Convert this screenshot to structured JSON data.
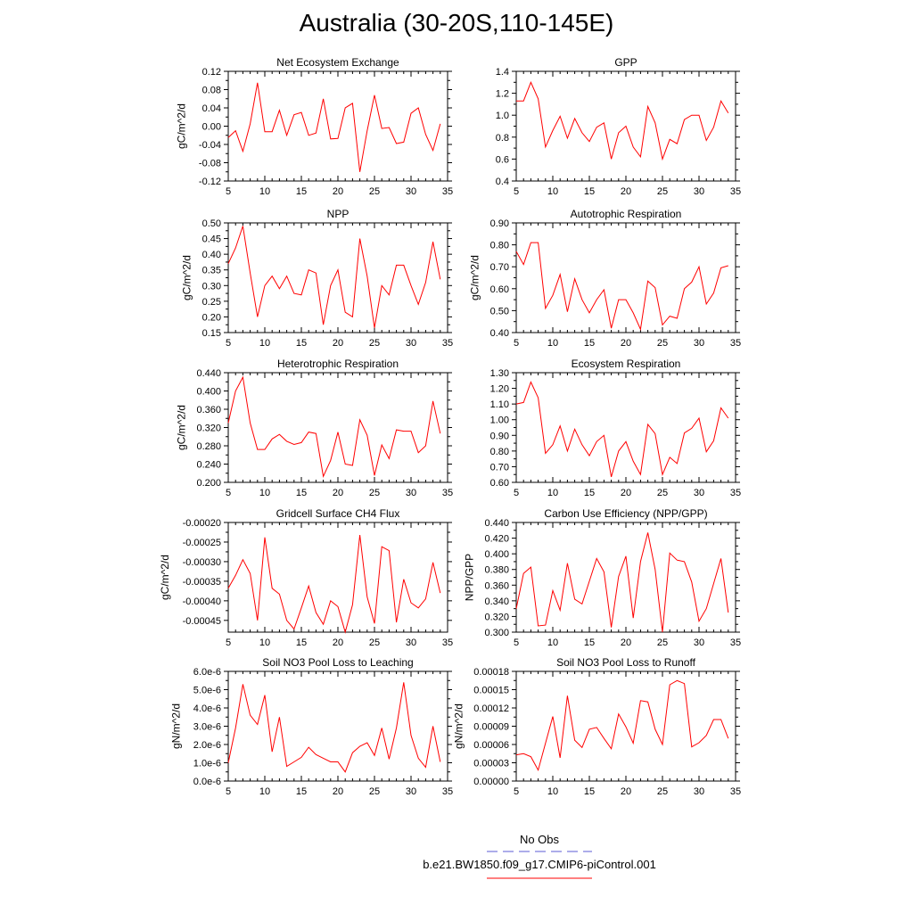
{
  "title": "Australia (30-20S,110-145E)",
  "colors": {
    "model": "#ff0000",
    "obs": "#5b5bd6"
  },
  "legend": {
    "entries": [
      {
        "name": "No Obs",
        "style": "dashed",
        "color": "#5b5bd6"
      },
      {
        "name": "b.e21.BW1850.f09_g17.CMIP6-piControl.001",
        "style": "solid",
        "color": "#ff0000"
      }
    ]
  },
  "chart_data": [
    {
      "type": "line",
      "title": "Net Ecosystem Exchange",
      "ylabel": "gC/m^2/d",
      "xlim": [
        5,
        35
      ],
      "xticks": [
        5,
        10,
        15,
        20,
        25,
        30,
        35
      ],
      "ylim": [
        -0.12,
        0.12
      ],
      "yticks": [
        "-0.12",
        "-0.08",
        "-0.04",
        "0.00",
        "0.04",
        "0.08",
        "0.12"
      ],
      "x": [
        5,
        6,
        7,
        8,
        9,
        10,
        11,
        12,
        13,
        14,
        15,
        16,
        17,
        18,
        19,
        20,
        21,
        22,
        23,
        24,
        25,
        26,
        27,
        28,
        29,
        30,
        31,
        32,
        33,
        34
      ],
      "series": [
        {
          "values": [
            -0.025,
            -0.01,
            -0.055,
            0.005,
            0.095,
            -0.012,
            -0.012,
            0.035,
            -0.02,
            0.025,
            0.03,
            -0.02,
            -0.015,
            0.06,
            -0.028,
            -0.027,
            0.04,
            0.05,
            -0.1,
            -0.01,
            0.068,
            -0.005,
            -0.003,
            -0.038,
            -0.035,
            0.028,
            0.04,
            -0.018,
            -0.053,
            0.005
          ]
        }
      ]
    },
    {
      "type": "line",
      "title": "GPP",
      "ylabel": "",
      "xlim": [
        5,
        35
      ],
      "xticks": [
        5,
        10,
        15,
        20,
        25,
        30,
        35
      ],
      "ylim": [
        0.4,
        1.4
      ],
      "yticks": [
        "0.4",
        "0.6",
        "0.8",
        "1.0",
        "1.2",
        "1.4"
      ],
      "x": [
        5,
        6,
        7,
        8,
        9,
        10,
        11,
        12,
        13,
        14,
        15,
        16,
        17,
        18,
        19,
        20,
        21,
        22,
        23,
        24,
        25,
        26,
        27,
        28,
        29,
        30,
        31,
        32,
        33,
        34
      ],
      "series": [
        {
          "values": [
            1.13,
            1.13,
            1.3,
            1.15,
            0.71,
            0.86,
            0.99,
            0.79,
            0.97,
            0.84,
            0.76,
            0.89,
            0.93,
            0.6,
            0.84,
            0.9,
            0.71,
            0.62,
            1.08,
            0.93,
            0.6,
            0.78,
            0.74,
            0.96,
            1.0,
            1.0,
            0.77,
            0.89,
            1.13,
            1.02
          ]
        }
      ]
    },
    {
      "type": "line",
      "title": "NPP",
      "ylabel": "gC/m^2/d",
      "xlim": [
        5,
        35
      ],
      "xticks": [
        5,
        10,
        15,
        20,
        25,
        30,
        35
      ],
      "ylim": [
        0.15,
        0.5
      ],
      "yticks": [
        "0.15",
        "0.20",
        "0.25",
        "0.30",
        "0.35",
        "0.40",
        "0.45",
        "0.50"
      ],
      "x": [
        5,
        6,
        7,
        8,
        9,
        10,
        11,
        12,
        13,
        14,
        15,
        16,
        17,
        18,
        19,
        20,
        21,
        22,
        23,
        24,
        25,
        26,
        27,
        28,
        29,
        30,
        31,
        32,
        33,
        34
      ],
      "series": [
        {
          "values": [
            0.37,
            0.42,
            0.49,
            0.34,
            0.2,
            0.3,
            0.33,
            0.29,
            0.33,
            0.275,
            0.27,
            0.35,
            0.34,
            0.175,
            0.3,
            0.35,
            0.215,
            0.2,
            0.45,
            0.33,
            0.165,
            0.3,
            0.27,
            0.365,
            0.365,
            0.3,
            0.24,
            0.31,
            0.44,
            0.32
          ]
        }
      ]
    },
    {
      "type": "line",
      "title": "Autotrophic Respiration",
      "ylabel": "gC/m^2/d",
      "xlim": [
        5,
        35
      ],
      "xticks": [
        5,
        10,
        15,
        20,
        25,
        30,
        35
      ],
      "ylim": [
        0.4,
        0.9
      ],
      "yticks": [
        "0.40",
        "0.50",
        "0.60",
        "0.70",
        "0.80",
        "0.90"
      ],
      "x": [
        5,
        6,
        7,
        8,
        9,
        10,
        11,
        12,
        13,
        14,
        15,
        16,
        17,
        18,
        19,
        20,
        21,
        22,
        23,
        24,
        25,
        26,
        27,
        28,
        29,
        30,
        31,
        32,
        33,
        34
      ],
      "series": [
        {
          "values": [
            0.77,
            0.71,
            0.81,
            0.81,
            0.51,
            0.57,
            0.665,
            0.495,
            0.645,
            0.55,
            0.49,
            0.55,
            0.595,
            0.42,
            0.55,
            0.55,
            0.49,
            0.415,
            0.635,
            0.605,
            0.435,
            0.475,
            0.465,
            0.6,
            0.63,
            0.7,
            0.53,
            0.58,
            0.695,
            0.705
          ]
        }
      ]
    },
    {
      "type": "line",
      "title": "Heterotrophic Respiration",
      "ylabel": "gC/m^2/d",
      "xlim": [
        5,
        35
      ],
      "xticks": [
        5,
        10,
        15,
        20,
        25,
        30,
        35
      ],
      "ylim": [
        0.2,
        0.44
      ],
      "yticks": [
        "0.200",
        "0.240",
        "0.280",
        "0.320",
        "0.360",
        "0.400",
        "0.440"
      ],
      "x": [
        5,
        6,
        7,
        8,
        9,
        10,
        11,
        12,
        13,
        14,
        15,
        16,
        17,
        18,
        19,
        20,
        21,
        22,
        23,
        24,
        25,
        26,
        27,
        28,
        29,
        30,
        31,
        32,
        33,
        34
      ],
      "series": [
        {
          "values": [
            0.33,
            0.4,
            0.43,
            0.33,
            0.272,
            0.272,
            0.295,
            0.305,
            0.29,
            0.283,
            0.287,
            0.31,
            0.307,
            0.213,
            0.248,
            0.31,
            0.24,
            0.237,
            0.337,
            0.303,
            0.215,
            0.282,
            0.252,
            0.315,
            0.312,
            0.312,
            0.265,
            0.28,
            0.378,
            0.307
          ]
        }
      ]
    },
    {
      "type": "line",
      "title": "Ecosystem Respiration",
      "ylabel": "",
      "xlim": [
        5,
        35
      ],
      "xticks": [
        5,
        10,
        15,
        20,
        25,
        30,
        35
      ],
      "ylim": [
        0.6,
        1.3
      ],
      "yticks": [
        "0.60",
        "0.70",
        "0.80",
        "0.90",
        "1.00",
        "1.10",
        "1.20",
        "1.30"
      ],
      "x": [
        5,
        6,
        7,
        8,
        9,
        10,
        11,
        12,
        13,
        14,
        15,
        16,
        17,
        18,
        19,
        20,
        21,
        22,
        23,
        24,
        25,
        26,
        27,
        28,
        29,
        30,
        31,
        32,
        33,
        34
      ],
      "series": [
        {
          "values": [
            1.1,
            1.11,
            1.24,
            1.14,
            0.785,
            0.84,
            0.96,
            0.8,
            0.94,
            0.84,
            0.77,
            0.86,
            0.9,
            0.635,
            0.8,
            0.86,
            0.735,
            0.65,
            0.97,
            0.91,
            0.65,
            0.76,
            0.72,
            0.915,
            0.945,
            1.01,
            0.795,
            0.865,
            1.075,
            1.01
          ]
        }
      ]
    },
    {
      "type": "line",
      "title": "Gridcell Surface CH4 Flux",
      "ylabel": "gC/m^2/d",
      "xlim": [
        5,
        35
      ],
      "xticks": [
        5,
        10,
        15,
        20,
        25,
        30,
        35
      ],
      "ylim": [
        -0.00048,
        -0.0002
      ],
      "yticks": [
        "-0.00045",
        "-0.00040",
        "-0.00035",
        "-0.00030",
        "-0.00025",
        "-0.00020"
      ],
      "x": [
        5,
        6,
        7,
        8,
        9,
        10,
        11,
        12,
        13,
        14,
        15,
        16,
        17,
        18,
        19,
        20,
        21,
        22,
        23,
        24,
        25,
        26,
        27,
        28,
        29,
        30,
        31,
        32,
        33,
        34
      ],
      "series": [
        {
          "values": [
            -0.000368,
            -0.000335,
            -0.000295,
            -0.00033,
            -0.00045,
            -0.000238,
            -0.000368,
            -0.000383,
            -0.00045,
            -0.000472,
            -0.000418,
            -0.000362,
            -0.00043,
            -0.00046,
            -0.0004,
            -0.000415,
            -0.00048,
            -0.00041,
            -0.000232,
            -0.00039,
            -0.000458,
            -0.000262,
            -0.000272,
            -0.000455,
            -0.000345,
            -0.000405,
            -0.000418,
            -0.000395,
            -0.000302,
            -0.00038
          ]
        }
      ]
    },
    {
      "type": "line",
      "title": "Carbon Use Efficiency (NPP/GPP)",
      "ylabel": "NPP/GPP",
      "xlim": [
        5,
        35
      ],
      "xticks": [
        5,
        10,
        15,
        20,
        25,
        30,
        35
      ],
      "ylim": [
        0.3,
        0.44
      ],
      "yticks": [
        "0.300",
        "0.320",
        "0.340",
        "0.360",
        "0.380",
        "0.400",
        "0.420",
        "0.440"
      ],
      "x": [
        5,
        6,
        7,
        8,
        9,
        10,
        11,
        12,
        13,
        14,
        15,
        16,
        17,
        18,
        19,
        20,
        21,
        22,
        23,
        24,
        25,
        26,
        27,
        28,
        29,
        30,
        31,
        32,
        33,
        34
      ],
      "series": [
        {
          "values": [
            0.33,
            0.375,
            0.383,
            0.308,
            0.309,
            0.353,
            0.328,
            0.388,
            0.342,
            0.336,
            0.365,
            0.394,
            0.377,
            0.306,
            0.371,
            0.397,
            0.318,
            0.39,
            0.427,
            0.38,
            0.3,
            0.401,
            0.392,
            0.39,
            0.364,
            0.314,
            0.33,
            0.362,
            0.394,
            0.325
          ]
        }
      ]
    },
    {
      "type": "line",
      "title": "Soil NO3 Pool Loss to Leaching",
      "ylabel": "gN/m^2/d",
      "xlim": [
        5,
        35
      ],
      "xticks": [
        5,
        10,
        15,
        20,
        25,
        30,
        35
      ],
      "ylim": [
        0,
        6e-06
      ],
      "yticks": [
        "0.0e-6",
        "1.0e-6",
        "2.0e-6",
        "3.0e-6",
        "4.0e-6",
        "5.0e-6",
        "6.0e-6"
      ],
      "x": [
        5,
        6,
        7,
        8,
        9,
        10,
        11,
        12,
        13,
        14,
        15,
        16,
        17,
        18,
        19,
        20,
        21,
        22,
        23,
        24,
        25,
        26,
        27,
        28,
        29,
        30,
        31,
        32,
        33,
        34
      ],
      "series": [
        {
          "values": [
            1e-06,
            2.9e-06,
            5.3e-06,
            3.6e-06,
            3.1e-06,
            4.7e-06,
            1.6e-06,
            3.5e-06,
            8e-07,
            1.05e-06,
            1.3e-06,
            1.85e-06,
            1.45e-06,
            1.25e-06,
            1.05e-06,
            1.05e-06,
            5e-07,
            1.55e-06,
            1.9e-06,
            2.1e-06,
            1.4e-06,
            2.9e-06,
            1.2e-06,
            2.9e-06,
            5.4e-06,
            2.5e-06,
            1.25e-06,
            7.5e-07,
            3e-06,
            1.05e-06
          ]
        }
      ]
    },
    {
      "type": "line",
      "title": "Soil NO3 Pool Loss to Runoff",
      "ylabel": "gN/m^2/d",
      "xlim": [
        5,
        35
      ],
      "xticks": [
        5,
        10,
        15,
        20,
        25,
        30,
        35
      ],
      "ylim": [
        0,
        0.00018
      ],
      "yticks": [
        "0.00000",
        "0.00003",
        "0.00006",
        "0.00009",
        "0.00012",
        "0.00015",
        "0.00018"
      ],
      "x": [
        5,
        6,
        7,
        8,
        9,
        10,
        11,
        12,
        13,
        14,
        15,
        16,
        17,
        18,
        19,
        20,
        21,
        22,
        23,
        24,
        25,
        26,
        27,
        28,
        29,
        30,
        31,
        32,
        33,
        34
      ],
      "series": [
        {
          "values": [
            4.3e-05,
            4.5e-05,
            4e-05,
            1.8e-05,
            6.2e-05,
            0.000106,
            3.8e-05,
            0.00014,
            6.7e-05,
            5.5e-05,
            8.5e-05,
            8.8e-05,
            7e-05,
            5.3e-05,
            0.00011,
            8.9e-05,
            6.2e-05,
            0.000132,
            0.00013,
            8.5e-05,
            6e-05,
            0.000158,
            0.000165,
            0.00016,
            5.6e-05,
            6.3e-05,
            7.5e-05,
            0.000101,
            0.000101,
            7e-05
          ]
        }
      ]
    }
  ]
}
